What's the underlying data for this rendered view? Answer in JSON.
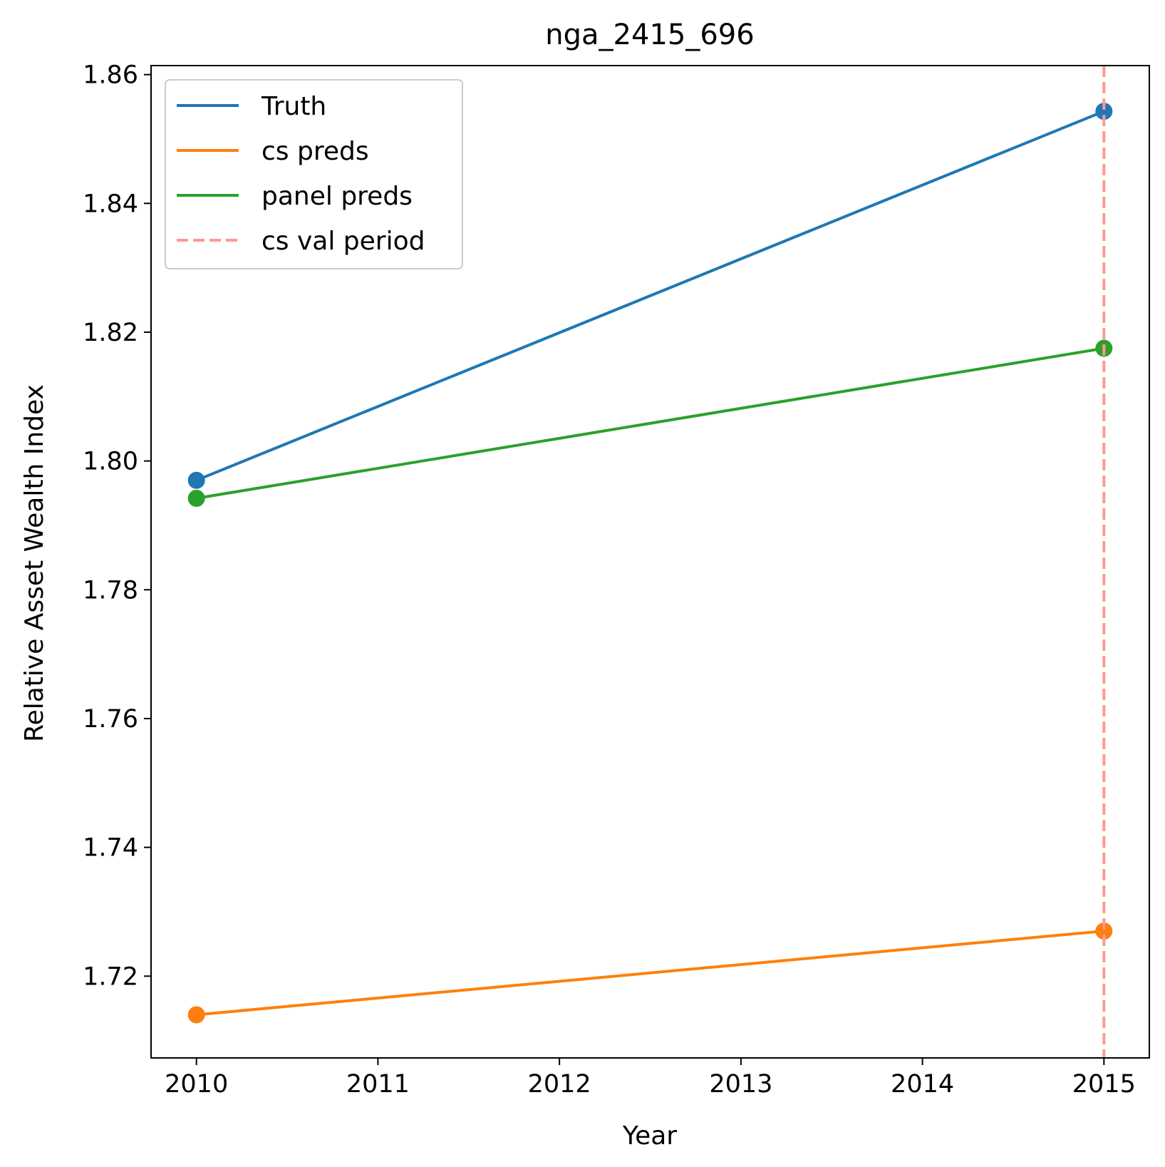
{
  "chart_data": {
    "type": "line",
    "title": "nga_2415_696",
    "xlabel": "Year",
    "ylabel": "Relative Asset Wealth Index",
    "xlim": [
      2009.75,
      2015.25
    ],
    "ylim": [
      1.7073,
      1.8614
    ],
    "xticks": [
      2010,
      2011,
      2012,
      2013,
      2014,
      2015
    ],
    "xtick_labels": [
      "2010",
      "2011",
      "2012",
      "2013",
      "2014",
      "2015"
    ],
    "yticks": [
      1.72,
      1.74,
      1.76,
      1.78,
      1.8,
      1.82,
      1.84,
      1.86
    ],
    "ytick_labels": [
      "1.72",
      "1.74",
      "1.76",
      "1.78",
      "1.80",
      "1.82",
      "1.84",
      "1.86"
    ],
    "grid": false,
    "legend_position": "top-left",
    "series": [
      {
        "name": "Truth",
        "color": "#1f77b4",
        "style": "solid",
        "markers": true,
        "x": [
          2010,
          2015
        ],
        "y": [
          1.797,
          1.8543
        ]
      },
      {
        "name": "cs preds",
        "color": "#ff7f0e",
        "style": "solid",
        "markers": true,
        "x": [
          2010,
          2015
        ],
        "y": [
          1.714,
          1.727
        ]
      },
      {
        "name": "panel preds",
        "color": "#2ca02c",
        "style": "solid",
        "markers": true,
        "x": [
          2010,
          2015
        ],
        "y": [
          1.7942,
          1.8175
        ]
      }
    ],
    "vlines": [
      {
        "name": "cs val period",
        "x": 2015,
        "color": "#ff9896",
        "style": "dashed"
      }
    ]
  }
}
